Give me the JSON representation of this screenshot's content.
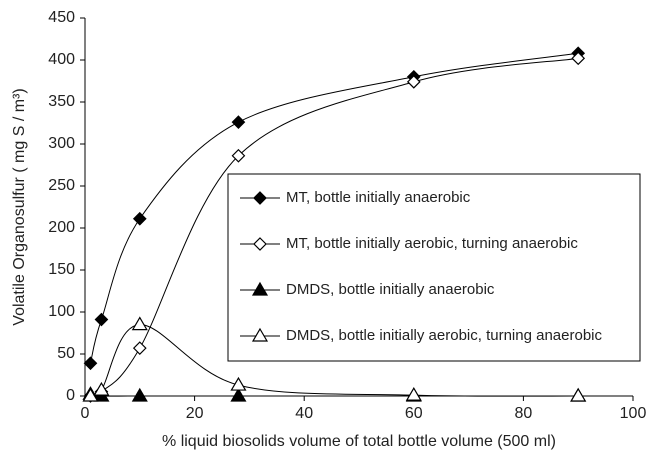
{
  "chart_data": {
    "type": "line",
    "x_label": "% liquid biosolids volume of total bottle volume (500 ml)",
    "y_label": "Volatile Organosulfur ( mg S / m³)",
    "x": [
      1,
      3,
      10,
      28,
      60,
      90
    ],
    "series": [
      {
        "name": "MT, bottle initially anaerobic",
        "color": "#000000",
        "marker": "diamond",
        "filled": true,
        "values": [
          39,
          91,
          211,
          326,
          380,
          408
        ]
      },
      {
        "name": "MT, bottle initially aerobic, turning anaerobic",
        "color": "#000000",
        "marker": "diamond",
        "filled": false,
        "values": [
          0,
          5,
          57,
          286,
          374,
          402
        ]
      },
      {
        "name": "DMDS, bottle initially anaerobic",
        "color": "#000000",
        "marker": "triangle",
        "filled": true,
        "values": [
          2,
          0,
          0,
          0,
          0,
          0
        ]
      },
      {
        "name": "DMDS, bottle initially aerobic, turning anaerobic",
        "color": "#000000",
        "marker": "triangle",
        "filled": false,
        "values": [
          0,
          7,
          85,
          13,
          1,
          0
        ]
      }
    ],
    "xlim": [
      0,
      100
    ],
    "xticks": [
      0,
      20,
      40,
      60,
      80,
      100
    ],
    "ylim": [
      0,
      450
    ],
    "yticks": [
      0,
      50,
      100,
      150,
      200,
      250,
      300,
      350,
      400,
      450
    ],
    "smooth": true,
    "grid": false,
    "legend": "right"
  }
}
